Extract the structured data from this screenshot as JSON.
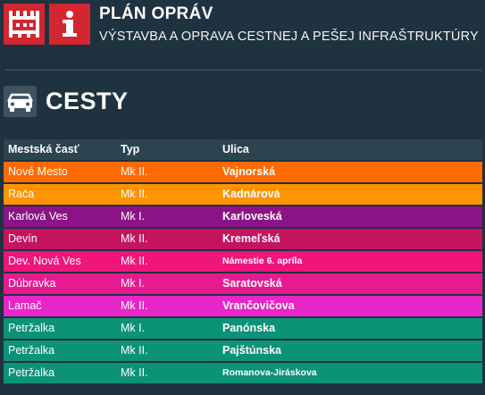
{
  "header": {
    "title": "PLÁN OPRÁV",
    "subtitle": "VÝSTAVBA A OPRAVA CESTNEJ A PEŠEJ INFRAŠTRUKTÚRY",
    "logo_bratislava_icon": "city-wall-icon",
    "logo_info_icon": "info-icon",
    "logo_color": "#d22630"
  },
  "section": {
    "title": "CESTY",
    "icon": "car-icon"
  },
  "table": {
    "columns": [
      "Mestská časť",
      "Typ",
      "Ulica"
    ],
    "rows": [
      {
        "district": "Nové Mesto",
        "type": "Mk II.",
        "street": "Vajnorská",
        "color": "#ff6b00"
      },
      {
        "district": "Rača",
        "type": "Mk II.",
        "street": "Kadnárová",
        "color": "#ff9400"
      },
      {
        "district": "Karlová Ves",
        "type": "Mk I.",
        "street": "Karloveská",
        "color": "#8b1387"
      },
      {
        "district": "Devín",
        "type": "Mk II.",
        "street": "Kremeľská",
        "color": "#c4135f"
      },
      {
        "district": "Dev. Nová Ves",
        "type": "Mk II.",
        "street": "Námestie 6. apríla",
        "color": "#f0157a"
      },
      {
        "district": "Dúbravka",
        "type": "Mk I.",
        "street": "Saratovská",
        "color": "#e61b8f"
      },
      {
        "district": "Lamač",
        "type": "Mk II.",
        "street": "Vrančovičova",
        "color": "#e825c9"
      },
      {
        "district": "Petržalka",
        "type": "Mk I.",
        "street": "Panónska",
        "color": "#0c9277"
      },
      {
        "district": "Petržalka",
        "type": "Mk II.",
        "street": "Pajštúnska",
        "color": "#0c9277"
      },
      {
        "district": "Petržalka",
        "type": "Mk II.",
        "street": "Romanova-Jiráskova",
        "color": "#0c9277"
      }
    ]
  }
}
